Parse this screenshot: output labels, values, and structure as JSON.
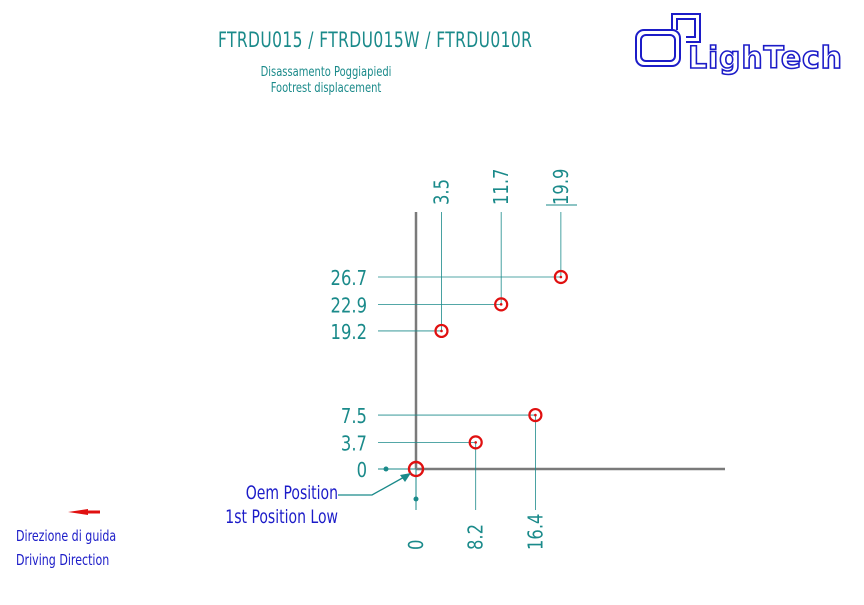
{
  "header": {
    "title": "FTRDU015 / FTRDU015W / FTRDU010R",
    "subtitle_it": "Disassamento Poggiapiedi",
    "subtitle_en": "Footrest displacement",
    "logo_text": "LighTech"
  },
  "diagram": {
    "origin_label": "0",
    "points": [
      {
        "x": 8.2,
        "y": 3.7
      },
      {
        "x": 16.4,
        "y": 7.5
      },
      {
        "x": 3.5,
        "y": 19.2
      },
      {
        "x": 11.7,
        "y": 22.9
      },
      {
        "x": 19.9,
        "y": 26.7
      }
    ],
    "x_labels_bottom": [
      "0",
      "8.2",
      "16.4"
    ],
    "x_labels_top": [
      "3.5",
      "11.7",
      "19.9"
    ],
    "y_labels": [
      "26.7",
      "22.9",
      "19.2",
      "7.5",
      "3.7",
      "0"
    ],
    "callout_line1": "Oem Position",
    "callout_line2": "1st Position Low",
    "colors": {
      "axis": "#7a7a7a",
      "guide": "#1a8a8a",
      "marker": "#e01010",
      "text_blue": "#1c1cc8"
    }
  },
  "legend": {
    "direction_it": "Direzione di guida",
    "direction_en": "Driving Direction",
    "arrow_icon": "arrow-left-icon"
  }
}
